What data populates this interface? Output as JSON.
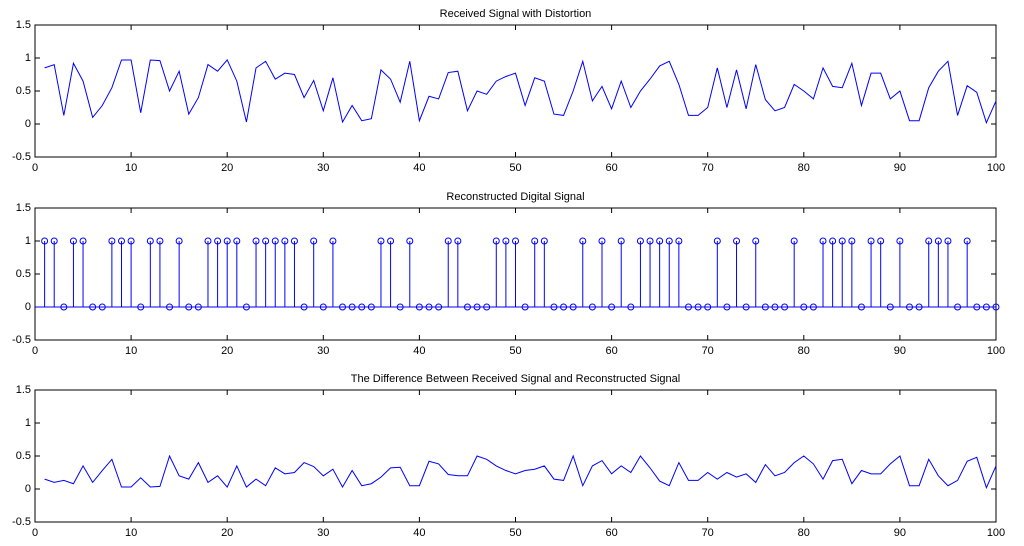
{
  "chart_data": [
    {
      "type": "line",
      "title": "Received Signal with Distortion",
      "color": "#0000ff",
      "x": [
        1,
        2,
        3,
        4,
        5,
        6,
        7,
        8,
        9,
        10,
        11,
        12,
        13,
        14,
        15,
        16,
        17,
        18,
        19,
        20,
        21,
        22,
        23,
        24,
        25,
        26,
        27,
        28,
        29,
        30,
        31,
        32,
        33,
        34,
        35,
        36,
        37,
        38,
        39,
        40,
        41,
        42,
        43,
        44,
        45,
        46,
        47,
        48,
        49,
        50,
        51,
        52,
        53,
        54,
        55,
        56,
        57,
        58,
        59,
        60,
        61,
        62,
        63,
        64,
        65,
        66,
        67,
        68,
        69,
        70,
        71,
        72,
        73,
        74,
        75,
        76,
        77,
        78,
        79,
        80,
        81,
        82,
        83,
        84,
        85,
        86,
        87,
        88,
        89,
        90,
        91,
        92,
        93,
        94,
        95,
        96,
        97,
        98,
        99,
        100
      ],
      "values": [
        0.85,
        0.9,
        0.13,
        0.92,
        0.65,
        0.1,
        0.28,
        0.55,
        0.97,
        0.97,
        0.17,
        0.97,
        0.96,
        0.5,
        0.8,
        0.15,
        0.4,
        0.9,
        0.8,
        0.97,
        0.65,
        0.03,
        0.85,
        0.95,
        0.68,
        0.77,
        0.75,
        0.4,
        0.66,
        0.2,
        0.7,
        0.03,
        0.28,
        0.05,
        0.08,
        0.82,
        0.68,
        0.33,
        0.95,
        0.05,
        0.42,
        0.38,
        0.78,
        0.8,
        0.2,
        0.5,
        0.45,
        0.65,
        0.72,
        0.77,
        0.28,
        0.7,
        0.65,
        0.15,
        0.13,
        0.5,
        0.95,
        0.35,
        0.57,
        0.23,
        0.65,
        0.25,
        0.5,
        0.68,
        0.88,
        0.95,
        0.6,
        0.13,
        0.13,
        0.25,
        0.85,
        0.25,
        0.82,
        0.23,
        0.9,
        0.37,
        0.2,
        0.25,
        0.6,
        0.5,
        0.38,
        0.85,
        0.57,
        0.55,
        0.92,
        0.28,
        0.77,
        0.77,
        0.38,
        0.5,
        0.05,
        0.05,
        0.55,
        0.8,
        0.95,
        0.13,
        0.58,
        0.48,
        0.02,
        0.35
      ],
      "xlim": [
        0,
        100
      ],
      "xticks": [
        0,
        10,
        20,
        30,
        40,
        50,
        60,
        70,
        80,
        90,
        100
      ],
      "ylim": [
        -0.5,
        1.5
      ],
      "yticks": [
        -0.5,
        0,
        0.5,
        1,
        1.5
      ]
    },
    {
      "type": "stem",
      "title": "Reconstructed Digital Signal",
      "color": "#0000ff",
      "x": [
        1,
        2,
        3,
        4,
        5,
        6,
        7,
        8,
        9,
        10,
        11,
        12,
        13,
        14,
        15,
        16,
        17,
        18,
        19,
        20,
        21,
        22,
        23,
        24,
        25,
        26,
        27,
        28,
        29,
        30,
        31,
        32,
        33,
        34,
        35,
        36,
        37,
        38,
        39,
        40,
        41,
        42,
        43,
        44,
        45,
        46,
        47,
        48,
        49,
        50,
        51,
        52,
        53,
        54,
        55,
        56,
        57,
        58,
        59,
        60,
        61,
        62,
        63,
        64,
        65,
        66,
        67,
        68,
        69,
        70,
        71,
        72,
        73,
        74,
        75,
        76,
        77,
        78,
        79,
        80,
        81,
        82,
        83,
        84,
        85,
        86,
        87,
        88,
        89,
        90,
        91,
        92,
        93,
        94,
        95,
        96,
        97,
        98,
        99,
        100
      ],
      "values": [
        1,
        1,
        0,
        1,
        1,
        0,
        0,
        1,
        1,
        1,
        0,
        1,
        1,
        0,
        1,
        0,
        0,
        1,
        1,
        1,
        1,
        0,
        1,
        1,
        1,
        1,
        1,
        0,
        1,
        0,
        1,
        0,
        0,
        0,
        0,
        1,
        1,
        0,
        1,
        0,
        0,
        0,
        1,
        1,
        0,
        0,
        0,
        1,
        1,
        1,
        0,
        1,
        1,
        0,
        0,
        0,
        1,
        0,
        1,
        0,
        1,
        0,
        1,
        1,
        1,
        1,
        1,
        0,
        0,
        0,
        1,
        0,
        1,
        0,
        1,
        0,
        0,
        0,
        1,
        0,
        0,
        1,
        1,
        1,
        1,
        0,
        1,
        1,
        0,
        1,
        0,
        0,
        1,
        1,
        1,
        0,
        1,
        0,
        0,
        0
      ],
      "xlim": [
        0,
        100
      ],
      "xticks": [
        0,
        10,
        20,
        30,
        40,
        50,
        60,
        70,
        80,
        90,
        100
      ],
      "ylim": [
        -0.5,
        1.5
      ],
      "yticks": [
        -0.5,
        0,
        0.5,
        1,
        1.5
      ]
    },
    {
      "type": "line",
      "title": "The Difference Between Received Signal and Reconstructed Signal",
      "color": "#0000ff",
      "x": [
        1,
        2,
        3,
        4,
        5,
        6,
        7,
        8,
        9,
        10,
        11,
        12,
        13,
        14,
        15,
        16,
        17,
        18,
        19,
        20,
        21,
        22,
        23,
        24,
        25,
        26,
        27,
        28,
        29,
        30,
        31,
        32,
        33,
        34,
        35,
        36,
        37,
        38,
        39,
        40,
        41,
        42,
        43,
        44,
        45,
        46,
        47,
        48,
        49,
        50,
        51,
        52,
        53,
        54,
        55,
        56,
        57,
        58,
        59,
        60,
        61,
        62,
        63,
        64,
        65,
        66,
        67,
        68,
        69,
        70,
        71,
        72,
        73,
        74,
        75,
        76,
        77,
        78,
        79,
        80,
        81,
        82,
        83,
        84,
        85,
        86,
        87,
        88,
        89,
        90,
        91,
        92,
        93,
        94,
        95,
        96,
        97,
        98,
        99,
        100
      ],
      "values": [
        0.15,
        0.1,
        0.13,
        0.08,
        0.35,
        0.1,
        0.28,
        0.45,
        0.03,
        0.03,
        0.17,
        0.03,
        0.04,
        0.5,
        0.2,
        0.15,
        0.4,
        0.1,
        0.2,
        0.03,
        0.35,
        0.03,
        0.15,
        0.05,
        0.32,
        0.23,
        0.25,
        0.4,
        0.34,
        0.2,
        0.3,
        0.03,
        0.28,
        0.05,
        0.08,
        0.18,
        0.32,
        0.33,
        0.05,
        0.05,
        0.42,
        0.38,
        0.22,
        0.2,
        0.2,
        0.5,
        0.45,
        0.35,
        0.28,
        0.23,
        0.28,
        0.3,
        0.35,
        0.15,
        0.13,
        0.5,
        0.05,
        0.35,
        0.43,
        0.23,
        0.35,
        0.25,
        0.5,
        0.32,
        0.12,
        0.05,
        0.4,
        0.13,
        0.13,
        0.25,
        0.15,
        0.25,
        0.18,
        0.23,
        0.1,
        0.37,
        0.2,
        0.25,
        0.4,
        0.5,
        0.38,
        0.15,
        0.43,
        0.45,
        0.08,
        0.28,
        0.23,
        0.23,
        0.38,
        0.5,
        0.05,
        0.05,
        0.45,
        0.2,
        0.05,
        0.13,
        0.42,
        0.48,
        0.02,
        0.35
      ],
      "xlim": [
        0,
        100
      ],
      "xticks": [
        0,
        10,
        20,
        30,
        40,
        50,
        60,
        70,
        80,
        90,
        100
      ],
      "ylim": [
        -0.5,
        1.5
      ],
      "yticks": [
        -0.5,
        0,
        0.5,
        1,
        1.5
      ]
    }
  ]
}
